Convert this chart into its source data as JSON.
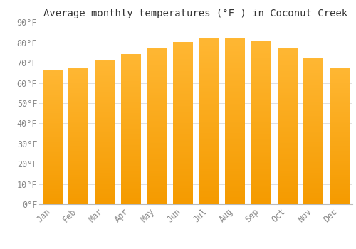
{
  "title": "Average monthly temperatures (°F ) in Coconut Creek",
  "months": [
    "Jan",
    "Feb",
    "Mar",
    "Apr",
    "May",
    "Jun",
    "Jul",
    "Aug",
    "Sep",
    "Oct",
    "Nov",
    "Dec"
  ],
  "values": [
    66,
    67,
    71,
    74,
    77,
    80,
    82,
    82,
    81,
    77,
    72,
    67
  ],
  "bar_color_top": "#FFB733",
  "bar_color_bottom": "#F59B00",
  "background_color": "#FFFFFF",
  "grid_color": "#E0E0E0",
  "ylim": [
    0,
    90
  ],
  "yticks": [
    0,
    10,
    20,
    30,
    40,
    50,
    60,
    70,
    80,
    90
  ],
  "title_fontsize": 10,
  "tick_fontsize": 8.5,
  "font_family": "monospace",
  "tick_color": "#888888",
  "bar_width": 0.75
}
